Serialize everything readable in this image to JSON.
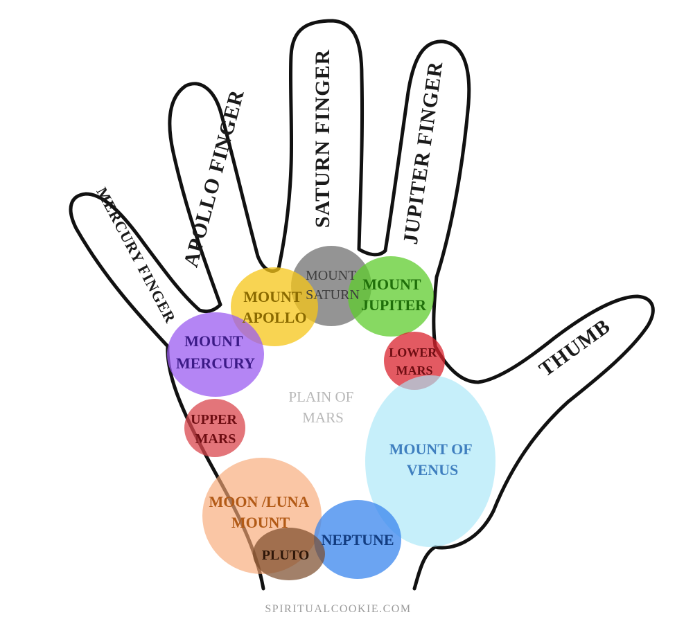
{
  "fingers": {
    "mercury": "MERCURY FINGER",
    "apollo": "APOLLO FINGER",
    "saturn": "SATURN FINGER",
    "jupiter": "JUPITER FINGER",
    "thumb": "THUMB"
  },
  "mounts": {
    "saturn": {
      "line1": "MOUNT",
      "line2": "SATURN",
      "fill": "#707070",
      "text_color": "#3e3e3e"
    },
    "apollo": {
      "line1": "MOUNT",
      "line2": "APOLLO",
      "fill": "#f5c518",
      "text_color": "#8a6a00"
    },
    "jupiter": {
      "line1": "MOUNT",
      "line2": "JUPITER",
      "fill": "#5fcc2e",
      "text_color": "#1f6f0a"
    },
    "mercury": {
      "line1": "MOUNT",
      "line2": "MERCURY",
      "fill": "#9b5cf0",
      "text_color": "#3b1a86"
    },
    "lower_mars": {
      "line1": "LOWER",
      "line2": "MARS",
      "fill": "#d9232e",
      "text_color": "#6e0d12"
    },
    "upper_mars": {
      "line1": "UPPER",
      "line2": "MARS",
      "fill": "#d9474e",
      "text_color": "#6e0d12"
    },
    "venus": {
      "line1": "MOUNT  OF",
      "line2": "VENUS",
      "fill": "#a8e6f7",
      "text_color": "#3f7fbf"
    },
    "moon": {
      "line1": "MOON  /LUNA",
      "line2": "MOUNT",
      "fill": "#f7a875",
      "text_color": "#b25a16"
    },
    "neptune": {
      "line1": "NEPTUNE",
      "fill": "#3a86ee",
      "text_color": "#123c80"
    },
    "pluto": {
      "line1": "PLUTO",
      "fill": "#7a4a2a",
      "text_color": "#2e1608"
    }
  },
  "plain_of_mars": {
    "line1": "PLAIN  OF",
    "line2": "MARS",
    "text_color": "#b8b8b8"
  },
  "credit": "SPIRITUALCOOKIE.COM"
}
